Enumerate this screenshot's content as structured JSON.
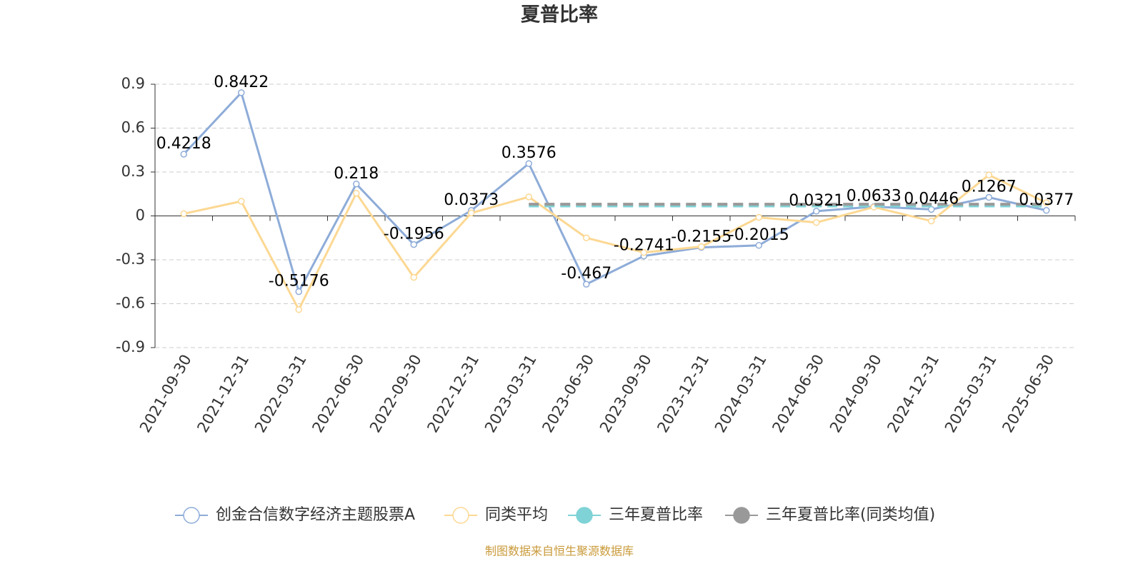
{
  "chart_data": {
    "type": "line",
    "title": "夏普比率",
    "footer": "制图数据来自恒生聚源数据库",
    "categories": [
      "2021-09-30",
      "2021-12-31",
      "2022-03-31",
      "2022-06-30",
      "2022-09-30",
      "2022-12-31",
      "2023-03-31",
      "2023-06-30",
      "2023-09-30",
      "2023-12-31",
      "2024-03-31",
      "2024-06-30",
      "2024-09-30",
      "2024-12-31",
      "2025-03-31",
      "2025-06-30"
    ],
    "series": [
      {
        "name": "创金合信数字经济主题股票A",
        "color": "#8eacd8",
        "values": [
          0.4218,
          0.8422,
          -0.5176,
          0.218,
          -0.1956,
          0.0373,
          0.3576,
          -0.467,
          -0.2741,
          -0.2155,
          -0.2015,
          0.0321,
          0.0633,
          0.0446,
          0.1267,
          0.0377
        ]
      },
      {
        "name": "同类平均",
        "color": "#fcd893",
        "values": [
          0.015,
          0.1,
          -0.64,
          0.155,
          -0.42,
          0.02,
          0.13,
          -0.15,
          -0.25,
          -0.21,
          -0.01,
          -0.045,
          0.06,
          -0.035,
          0.28,
          0.09
        ]
      },
      {
        "name": "三年夏普比率",
        "color": "#7fd3d6",
        "values": [
          null,
          null,
          null,
          null,
          null,
          null,
          0.068,
          0.068,
          0.068,
          0.068,
          0.068,
          0.068,
          0.068,
          0.068,
          0.068,
          0.068
        ]
      },
      {
        "name": "三年夏普比率(同类均值)",
        "color": "#999999",
        "values": [
          null,
          null,
          null,
          null,
          null,
          null,
          0.08,
          0.08,
          0.08,
          0.08,
          0.08,
          0.08,
          0.08,
          0.08,
          0.08,
          0.08
        ]
      }
    ],
    "ylim": [
      -0.9,
      0.9
    ],
    "yticks": [
      -0.9,
      -0.6,
      -0.3,
      0,
      0.3,
      0.6,
      0.9
    ],
    "grid": true
  }
}
